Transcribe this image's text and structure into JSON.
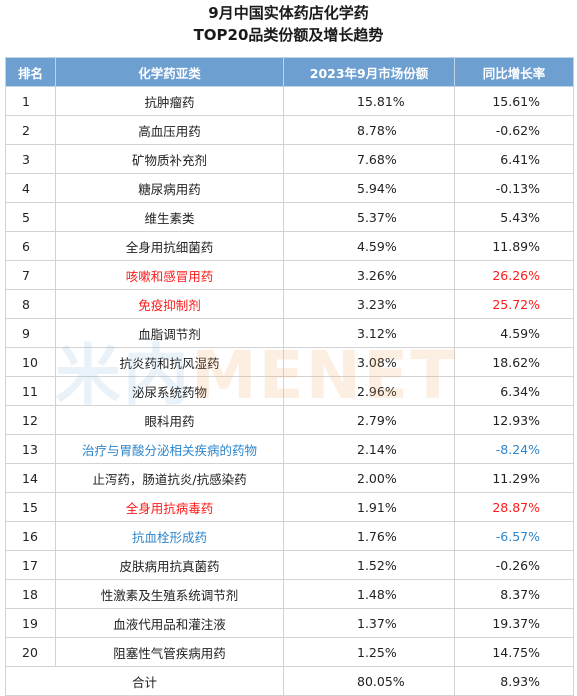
{
  "title": {
    "line1": "9月中国实体药店化学药",
    "line2": "TOP20品类份额及增长趋势"
  },
  "watermark": {
    "cn": "米内",
    "en": "MENET"
  },
  "headers": [
    "排名",
    "化学药亚类",
    "2023年9月市场份额",
    "同比增长率"
  ],
  "rows": [
    {
      "rank": "1",
      "name": "抗肿瘤药",
      "share": "15.81%",
      "growth": "15.61%",
      "highlight": "none"
    },
    {
      "rank": "2",
      "name": "高血压用药",
      "share": "8.78%",
      "growth": "-0.62%",
      "highlight": "none"
    },
    {
      "rank": "3",
      "name": "矿物质补充剂",
      "share": "7.68%",
      "growth": "6.41%",
      "highlight": "none"
    },
    {
      "rank": "4",
      "name": "糖尿病用药",
      "share": "5.94%",
      "growth": "-0.13%",
      "highlight": "none"
    },
    {
      "rank": "5",
      "name": "维生素类",
      "share": "5.37%",
      "growth": "5.43%",
      "highlight": "none"
    },
    {
      "rank": "6",
      "name": "全身用抗细菌药",
      "share": "4.59%",
      "growth": "11.89%",
      "highlight": "none"
    },
    {
      "rank": "7",
      "name": "咳嗽和感冒用药",
      "share": "3.26%",
      "growth": "26.26%",
      "highlight": "red"
    },
    {
      "rank": "8",
      "name": "免疫抑制剂",
      "share": "3.23%",
      "growth": "25.72%",
      "highlight": "red"
    },
    {
      "rank": "9",
      "name": "血脂调节剂",
      "share": "3.12%",
      "growth": "4.59%",
      "highlight": "none"
    },
    {
      "rank": "10",
      "name": "抗炎药和抗风湿药",
      "share": "3.08%",
      "growth": "18.62%",
      "highlight": "none"
    },
    {
      "rank": "11",
      "name": "泌尿系统药物",
      "share": "2.96%",
      "growth": "6.34%",
      "highlight": "none"
    },
    {
      "rank": "12",
      "name": "眼科用药",
      "share": "2.79%",
      "growth": "12.93%",
      "highlight": "none"
    },
    {
      "rank": "13",
      "name": "治疗与胃酸分泌相关疾病的药物",
      "share": "2.14%",
      "growth": "-8.24%",
      "highlight": "blue"
    },
    {
      "rank": "14",
      "name": "止泻药，肠道抗炎/抗感染药",
      "share": "2.00%",
      "growth": "11.29%",
      "highlight": "none"
    },
    {
      "rank": "15",
      "name": "全身用抗病毒药",
      "share": "1.91%",
      "growth": "28.87%",
      "highlight": "red"
    },
    {
      "rank": "16",
      "name": "抗血栓形成药",
      "share": "1.76%",
      "growth": "-6.57%",
      "highlight": "blue"
    },
    {
      "rank": "17",
      "name": "皮肤病用抗真菌药",
      "share": "1.52%",
      "growth": "-0.26%",
      "highlight": "none"
    },
    {
      "rank": "18",
      "name": "性激素及生殖系统调节剂",
      "share": "1.48%",
      "growth": "8.37%",
      "highlight": "none"
    },
    {
      "rank": "19",
      "name": "血液代用品和灌注液",
      "share": "1.37%",
      "growth": "19.37%",
      "highlight": "none"
    },
    {
      "rank": "20",
      "name": "阻塞性气管疾病用药",
      "share": "1.25%",
      "growth": "14.75%",
      "highlight": "none"
    }
  ],
  "total": {
    "label": "合计",
    "share": "80.05%",
    "growth": "8.93%"
  },
  "colors": {
    "header_bg": "#6d9fd0",
    "header_text": "#ffffff",
    "highlight_red": "#ff1a1a",
    "highlight_blue": "#2e86cc"
  }
}
